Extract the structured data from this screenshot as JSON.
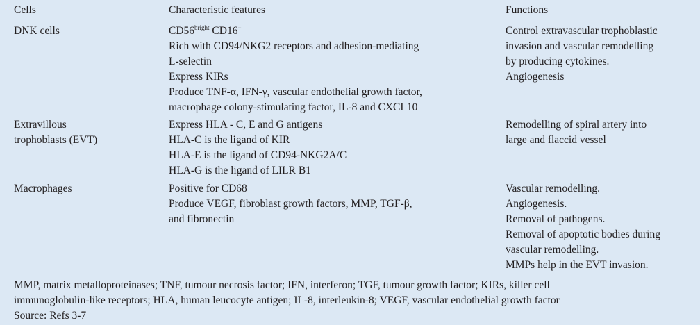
{
  "table": {
    "headers": [
      "Cells",
      "Characteristic features",
      "Functions"
    ],
    "rows": [
      {
        "cell": [
          "DNK cells"
        ],
        "features": [
          [
            "CD56",
            "bright",
            " CD16",
            "−"
          ],
          "Rich with CD94/NKG2 receptors and adhesion-mediating",
          "L-selectin",
          "Express KIRs",
          "Produce TNF-α, IFN-γ, vascular endothelial growth factor,",
          "macrophage colony-stimulating factor, IL-8 and CXCL10"
        ],
        "functions": [
          "Control extravascular trophoblastic",
          "invasion and vascular remodelling",
          "by producing cytokines.",
          "Angiogenesis"
        ]
      },
      {
        "cell": [
          "Extravillous",
          "trophoblasts (EVT)"
        ],
        "features": [
          "Express HLA - C, E and G antigens",
          "HLA-C is the ligand of KIR",
          "HLA-E is the ligand of CD94-NKG2A/C",
          "HLA-G is the ligand of LILR B1"
        ],
        "functions": [
          "Remodelling of spiral artery into",
          "large and flaccid vessel"
        ]
      },
      {
        "cell": [
          "Macrophages"
        ],
        "features": [
          "Positive for CD68",
          "Produce VEGF, fibroblast growth factors, MMP, TGF-β,",
          "and fibronectin"
        ],
        "functions": [
          "Vascular remodelling.",
          "Angiogenesis.",
          "Removal of pathogens.",
          "Removal of apoptotic bodies during",
          "vascular remodelling.",
          "MMPs help in the EVT invasion."
        ]
      }
    ],
    "footnotes": [
      "MMP, matrix metalloproteinases; TNF, tumour necrosis factor; IFN, interferon; TGF, tumour growth factor; KIRs, killer cell",
      "immunoglobulin-like receptors; HLA, human leucocyte antigen; IL-8, interleukin-8; VEGF, vascular endothelial growth factor",
      "Source: Refs 3-7"
    ]
  }
}
